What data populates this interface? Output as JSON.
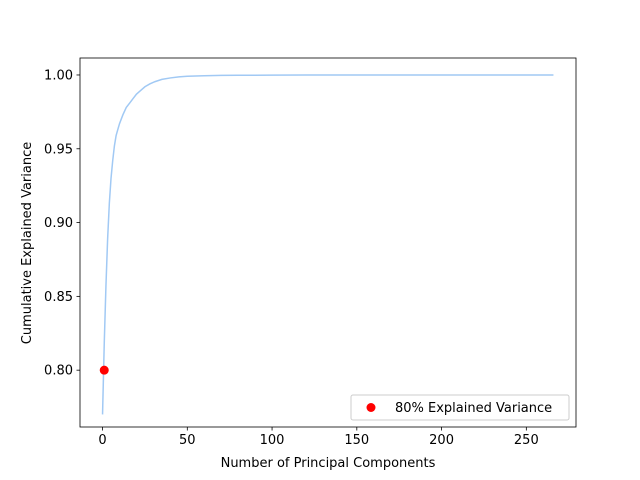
{
  "chart_data": {
    "type": "line",
    "title": "",
    "xlabel": "Number of Principal Components",
    "ylabel": "Cumulative Explained Variance",
    "xlim": [
      -13.3,
      279.3
    ],
    "ylim": [
      0.7615,
      1.0115
    ],
    "xticks": [
      0,
      50,
      100,
      150,
      200,
      250
    ],
    "yticks": [
      0.8,
      0.85,
      0.9,
      0.95,
      1.0
    ],
    "xtick_labels": [
      "0",
      "50",
      "100",
      "150",
      "200",
      "250"
    ],
    "ytick_labels": [
      "0.80",
      "0.85",
      "0.90",
      "0.95",
      "1.00"
    ],
    "grid": false,
    "series": [
      {
        "kind": "line",
        "color": "#a1c9f4",
        "x": [
          0,
          1,
          2,
          3,
          4,
          5,
          6,
          7,
          8,
          9,
          10,
          12,
          14,
          16,
          18,
          20,
          22,
          25,
          28,
          31,
          35,
          40,
          45,
          50,
          60,
          70,
          80,
          100,
          120,
          150,
          200,
          266
        ],
        "y": [
          0.77,
          0.818,
          0.857,
          0.889,
          0.913,
          0.93,
          0.942,
          0.952,
          0.959,
          0.963,
          0.967,
          0.973,
          0.978,
          0.981,
          0.984,
          0.987,
          0.989,
          0.992,
          0.994,
          0.9955,
          0.997,
          0.998,
          0.9987,
          0.9991,
          0.9995,
          0.9997,
          0.9998,
          0.9999,
          1.0,
          1.0,
          1.0,
          1.0
        ]
      },
      {
        "kind": "scatter",
        "name": "80% Explained Variance",
        "color": "#ff0000",
        "x": [
          1
        ],
        "y": [
          0.8
        ]
      }
    ],
    "legend": {
      "placement": "lower right",
      "entries": [
        "80% Explained Variance"
      ]
    }
  }
}
